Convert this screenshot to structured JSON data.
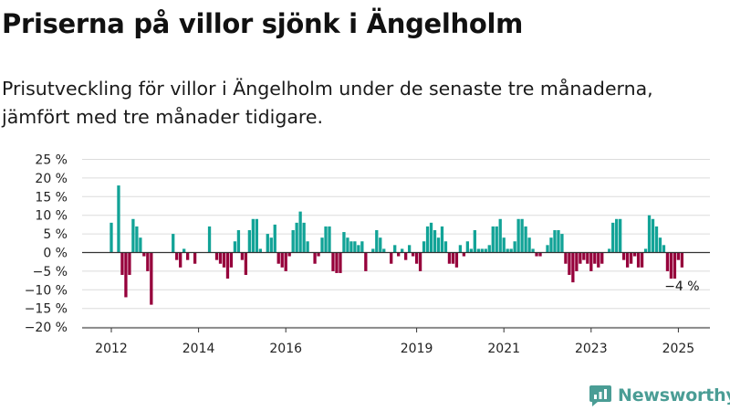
{
  "chart_data": {
    "type": "bar",
    "title": "Priserna på villor sjönk i Ängelholm",
    "subtitle": "Prisutveckling för villor i Ängelholm under de senaste tre månaderna, jämfört med tre månader tidigare.",
    "xlabel": "",
    "ylabel": "",
    "x_ticks": [
      "2012",
      "2014",
      "2016",
      "2019",
      "2021",
      "2023",
      "2025"
    ],
    "y_ticks": [
      "25 %",
      "20 %",
      "15 %",
      "10 %",
      "5 %",
      "0 %",
      "−5 %",
      "−10 %",
      "−15 %",
      "−20 %"
    ],
    "ylim": [
      -20,
      25
    ],
    "grid": true,
    "legend": "none",
    "colors": {
      "positive": "#12a397",
      "negative": "#96003b"
    },
    "annotation": {
      "text": "−4 %",
      "date": "2025-01"
    },
    "series": [
      {
        "points": [
          {
            "date": "2012-01",
            "value": 8
          },
          {
            "date": "2012-02",
            "value": 0
          },
          {
            "date": "2012-03",
            "value": 18
          },
          {
            "date": "2012-04",
            "value": -6
          },
          {
            "date": "2012-05",
            "value": -12
          },
          {
            "date": "2012-06",
            "value": -6
          },
          {
            "date": "2012-07",
            "value": 9
          },
          {
            "date": "2012-08",
            "value": 7
          },
          {
            "date": "2012-09",
            "value": 4
          },
          {
            "date": "2012-10",
            "value": -1
          },
          {
            "date": "2012-11",
            "value": -5
          },
          {
            "date": "2012-12",
            "value": -14
          },
          {
            "date": "2013-01",
            "value": 0
          },
          {
            "date": "2013-02",
            "value": 0
          },
          {
            "date": "2013-03",
            "value": 0
          },
          {
            "date": "2013-04",
            "value": 0
          },
          {
            "date": "2013-05",
            "value": 0
          },
          {
            "date": "2013-06",
            "value": 5
          },
          {
            "date": "2013-07",
            "value": -2
          },
          {
            "date": "2013-08",
            "value": -4
          },
          {
            "date": "2013-09",
            "value": 1
          },
          {
            "date": "2013-10",
            "value": -2
          },
          {
            "date": "2013-11",
            "value": 0
          },
          {
            "date": "2013-12",
            "value": -3
          },
          {
            "date": "2014-01",
            "value": 0
          },
          {
            "date": "2014-02",
            "value": 0
          },
          {
            "date": "2014-03",
            "value": 0
          },
          {
            "date": "2014-04",
            "value": 7
          },
          {
            "date": "2014-05",
            "value": 0
          },
          {
            "date": "2014-06",
            "value": -2
          },
          {
            "date": "2014-07",
            "value": -3
          },
          {
            "date": "2014-08",
            "value": -4
          },
          {
            "date": "2014-09",
            "value": -7
          },
          {
            "date": "2014-10",
            "value": -4
          },
          {
            "date": "2014-11",
            "value": 3
          },
          {
            "date": "2014-12",
            "value": 6
          },
          {
            "date": "2015-01",
            "value": -2
          },
          {
            "date": "2015-02",
            "value": -6
          },
          {
            "date": "2015-03",
            "value": 6
          },
          {
            "date": "2015-04",
            "value": 9
          },
          {
            "date": "2015-05",
            "value": 9
          },
          {
            "date": "2015-06",
            "value": 1
          },
          {
            "date": "2015-07",
            "value": 0
          },
          {
            "date": "2015-08",
            "value": 5
          },
          {
            "date": "2015-09",
            "value": 4
          },
          {
            "date": "2015-10",
            "value": 7.5
          },
          {
            "date": "2015-11",
            "value": -3
          },
          {
            "date": "2015-12",
            "value": -4
          },
          {
            "date": "2016-01",
            "value": -5
          },
          {
            "date": "2016-02",
            "value": -1
          },
          {
            "date": "2016-03",
            "value": 6
          },
          {
            "date": "2016-04",
            "value": 8
          },
          {
            "date": "2016-05",
            "value": 11
          },
          {
            "date": "2016-06",
            "value": 8
          },
          {
            "date": "2016-07",
            "value": 3
          },
          {
            "date": "2016-08",
            "value": 0
          },
          {
            "date": "2016-09",
            "value": -3
          },
          {
            "date": "2016-10",
            "value": -1
          },
          {
            "date": "2016-11",
            "value": 4
          },
          {
            "date": "2016-12",
            "value": 7
          },
          {
            "date": "2017-01",
            "value": 7
          },
          {
            "date": "2017-02",
            "value": -5
          },
          {
            "date": "2017-03",
            "value": -5.5
          },
          {
            "date": "2017-04",
            "value": -5.5
          },
          {
            "date": "2017-05",
            "value": 5.5
          },
          {
            "date": "2017-06",
            "value": 4
          },
          {
            "date": "2017-07",
            "value": 3
          },
          {
            "date": "2017-08",
            "value": 3
          },
          {
            "date": "2017-09",
            "value": 2
          },
          {
            "date": "2017-10",
            "value": 3
          },
          {
            "date": "2017-11",
            "value": -5
          },
          {
            "date": "2017-12",
            "value": 0
          },
          {
            "date": "2018-01",
            "value": 1
          },
          {
            "date": "2018-02",
            "value": 6
          },
          {
            "date": "2018-03",
            "value": 4
          },
          {
            "date": "2018-04",
            "value": 1
          },
          {
            "date": "2018-05",
            "value": 0
          },
          {
            "date": "2018-06",
            "value": -3
          },
          {
            "date": "2018-07",
            "value": 2
          },
          {
            "date": "2018-08",
            "value": -1
          },
          {
            "date": "2018-09",
            "value": 1
          },
          {
            "date": "2018-10",
            "value": -2
          },
          {
            "date": "2018-11",
            "value": 2
          },
          {
            "date": "2018-12",
            "value": -1
          },
          {
            "date": "2019-01",
            "value": -3
          },
          {
            "date": "2019-02",
            "value": -5
          },
          {
            "date": "2019-03",
            "value": 3
          },
          {
            "date": "2019-04",
            "value": 7
          },
          {
            "date": "2019-05",
            "value": 8
          },
          {
            "date": "2019-06",
            "value": 6
          },
          {
            "date": "2019-07",
            "value": 4
          },
          {
            "date": "2019-08",
            "value": 7
          },
          {
            "date": "2019-09",
            "value": 3
          },
          {
            "date": "2019-10",
            "value": -3
          },
          {
            "date": "2019-11",
            "value": -3
          },
          {
            "date": "2019-12",
            "value": -4
          },
          {
            "date": "2020-01",
            "value": 2
          },
          {
            "date": "2020-02",
            "value": -1
          },
          {
            "date": "2020-03",
            "value": 3
          },
          {
            "date": "2020-04",
            "value": 1
          },
          {
            "date": "2020-05",
            "value": 6
          },
          {
            "date": "2020-06",
            "value": 1
          },
          {
            "date": "2020-07",
            "value": 1
          },
          {
            "date": "2020-08",
            "value": 1
          },
          {
            "date": "2020-09",
            "value": 2
          },
          {
            "date": "2020-10",
            "value": 7
          },
          {
            "date": "2020-11",
            "value": 7
          },
          {
            "date": "2020-12",
            "value": 9
          },
          {
            "date": "2021-01",
            "value": 4
          },
          {
            "date": "2021-02",
            "value": 1
          },
          {
            "date": "2021-03",
            "value": 1
          },
          {
            "date": "2021-04",
            "value": 3
          },
          {
            "date": "2021-05",
            "value": 9
          },
          {
            "date": "2021-06",
            "value": 9
          },
          {
            "date": "2021-07",
            "value": 7
          },
          {
            "date": "2021-08",
            "value": 4
          },
          {
            "date": "2021-09",
            "value": 1
          },
          {
            "date": "2021-10",
            "value": -1
          },
          {
            "date": "2021-11",
            "value": -1
          },
          {
            "date": "2021-12",
            "value": 0
          },
          {
            "date": "2022-01",
            "value": 2
          },
          {
            "date": "2022-02",
            "value": 4
          },
          {
            "date": "2022-03",
            "value": 6
          },
          {
            "date": "2022-04",
            "value": 6
          },
          {
            "date": "2022-05",
            "value": 5
          },
          {
            "date": "2022-06",
            "value": -3
          },
          {
            "date": "2022-07",
            "value": -6
          },
          {
            "date": "2022-08",
            "value": -8
          },
          {
            "date": "2022-09",
            "value": -5
          },
          {
            "date": "2022-10",
            "value": -3
          },
          {
            "date": "2022-11",
            "value": -2
          },
          {
            "date": "2022-12",
            "value": -3
          },
          {
            "date": "2023-01",
            "value": -5
          },
          {
            "date": "2023-02",
            "value": -3
          },
          {
            "date": "2023-03",
            "value": -4
          },
          {
            "date": "2023-04",
            "value": -3
          },
          {
            "date": "2023-05",
            "value": 0
          },
          {
            "date": "2023-06",
            "value": 1
          },
          {
            "date": "2023-07",
            "value": 8
          },
          {
            "date": "2023-08",
            "value": 9
          },
          {
            "date": "2023-09",
            "value": 9
          },
          {
            "date": "2023-10",
            "value": -2
          },
          {
            "date": "2023-11",
            "value": -4
          },
          {
            "date": "2023-12",
            "value": -3
          },
          {
            "date": "2024-01",
            "value": -1
          },
          {
            "date": "2024-02",
            "value": -4
          },
          {
            "date": "2024-03",
            "value": -4
          },
          {
            "date": "2024-04",
            "value": 1
          },
          {
            "date": "2024-05",
            "value": 10
          },
          {
            "date": "2024-06",
            "value": 9
          },
          {
            "date": "2024-07",
            "value": 7
          },
          {
            "date": "2024-08",
            "value": 4
          },
          {
            "date": "2024-09",
            "value": 2
          },
          {
            "date": "2024-10",
            "value": -5
          },
          {
            "date": "2024-11",
            "value": -7
          },
          {
            "date": "2024-12",
            "value": -7
          },
          {
            "date": "2025-01",
            "value": -2
          },
          {
            "date": "2025-02",
            "value": -4
          }
        ]
      }
    ]
  },
  "brand": {
    "name": "Newsworthy",
    "icon": "bar-chart-speech-bubble-icon"
  }
}
